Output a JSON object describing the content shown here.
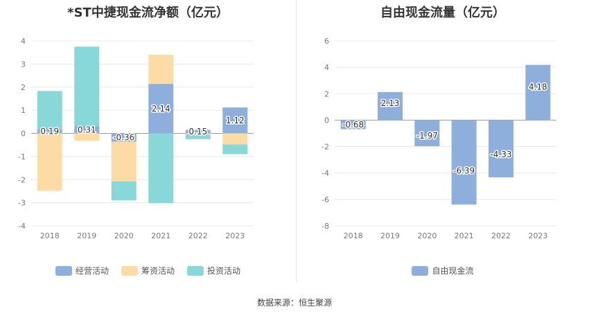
{
  "source_text": "数据来源：恒生聚源",
  "chart_data": [
    {
      "type": "bar",
      "title": "*ST中捷现金流净额（亿元）",
      "categories": [
        "2018",
        "2019",
        "2020",
        "2021",
        "2022",
        "2023"
      ],
      "ylim": [
        -4,
        4
      ],
      "yticks": [
        -4,
        -3,
        -2,
        -1,
        0,
        1,
        2,
        3,
        4
      ],
      "grid": true,
      "legend_position": "bottom",
      "stacked": true,
      "series": [
        {
          "name": "经营活动",
          "color": "#8eaedb",
          "values": [
            0.19,
            0.31,
            -0.36,
            2.14,
            0.15,
            1.12
          ],
          "labels": [
            "0.19",
            "0.31",
            "-0.36",
            "2.14",
            "0.15",
            "1.12"
          ]
        },
        {
          "name": "筹资活动",
          "color": "#fcdba5",
          "values": [
            -2.48,
            -0.32,
            -1.72,
            1.26,
            -0.05,
            -0.48
          ]
        },
        {
          "name": "投资活动",
          "color": "#88d7d9",
          "values": [
            1.64,
            3.44,
            -0.82,
            -3.02,
            -0.2,
            -0.42
          ]
        }
      ]
    },
    {
      "type": "bar",
      "title": "自由现金流量（亿元）",
      "categories": [
        "2018",
        "2019",
        "2020",
        "2021",
        "2022",
        "2023"
      ],
      "ylim": [
        -8,
        6
      ],
      "yticks": [
        -8,
        -6,
        -4,
        -2,
        0,
        2,
        4,
        6
      ],
      "grid": true,
      "legend_position": "bottom",
      "stacked": false,
      "series": [
        {
          "name": "自由现金流",
          "color": "#8eaedb",
          "values": [
            -0.68,
            2.13,
            -1.97,
            -6.39,
            -4.33,
            4.18
          ],
          "labels": [
            "-0.68",
            "2.13",
            "-1.97",
            "-6.39",
            "-4.33",
            "4.18"
          ]
        }
      ]
    }
  ]
}
